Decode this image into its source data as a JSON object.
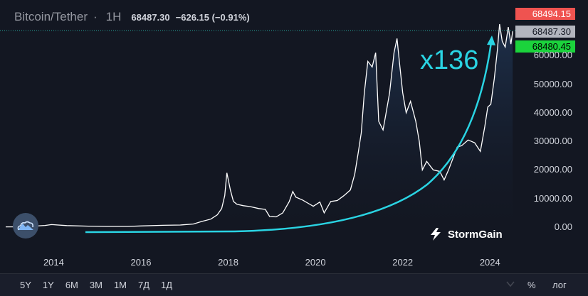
{
  "header": {
    "symbol": "Bitcoin/Tether",
    "separator": "·",
    "interval": "1H",
    "last_price": "68487.30",
    "change": "−626.15 (−0.91%)"
  },
  "price_tags": {
    "high": "68494.15",
    "last": "68487.30",
    "low": "68480.45",
    "high_color": "#ef5350",
    "last_color": "#b2b5be",
    "low_color": "#1bd33c"
  },
  "annotation": {
    "text": "x136",
    "color": "#2ad4e3"
  },
  "brand": {
    "name": "StormGain",
    "icon": "stormgain-logo-icon"
  },
  "logo_badge": {
    "icon": "cloud-mountain-icon"
  },
  "toolbar": {
    "ranges": [
      "5Y",
      "1Y",
      "6M",
      "3M",
      "1M",
      "7Д",
      "1Д"
    ],
    "percent_label": "%",
    "log_label": "лог",
    "settings_icon": "settings-icon"
  },
  "colors": {
    "background": "#131722",
    "price_line": "#ffffff",
    "area_fill": "#1c2a40",
    "trend_arrow": "#2ad4e3",
    "last_price_line": "#26a69a"
  },
  "chart_data": {
    "type": "area",
    "title": "Bitcoin/Tether",
    "xlabel": "",
    "ylabel": "",
    "x_ticks": [
      "2014",
      "2016",
      "2018",
      "2020",
      "2022",
      "2024"
    ],
    "y_ticks": [
      "0.00",
      "10000.00",
      "20000.00",
      "30000.00",
      "40000.00",
      "50000.00",
      "60000.00"
    ],
    "ylim": [
      0,
      72000
    ],
    "xlim": [
      2012.9,
      2024.55
    ],
    "grid": false,
    "series": [
      {
        "name": "Bitcoin/Tether",
        "x": [
          2012.9,
          2013.3,
          2013.8,
          2013.95,
          2014.3,
          2014.8,
          2015.2,
          2015.7,
          2016.0,
          2016.5,
          2016.9,
          2017.2,
          2017.4,
          2017.6,
          2017.75,
          2017.85,
          2017.92,
          2017.97,
          2018.05,
          2018.12,
          2018.2,
          2018.35,
          2018.5,
          2018.7,
          2018.85,
          2018.95,
          2019.1,
          2019.25,
          2019.4,
          2019.48,
          2019.55,
          2019.7,
          2019.85,
          2019.95,
          2020.1,
          2020.2,
          2020.35,
          2020.5,
          2020.65,
          2020.8,
          2020.9,
          2020.98,
          2021.05,
          2021.12,
          2021.2,
          2021.3,
          2021.38,
          2021.45,
          2021.55,
          2021.62,
          2021.7,
          2021.8,
          2021.87,
          2021.93,
          2022.0,
          2022.08,
          2022.18,
          2022.3,
          2022.38,
          2022.45,
          2022.55,
          2022.7,
          2022.85,
          2022.95,
          2023.05,
          2023.15,
          2023.25,
          2023.35,
          2023.5,
          2023.65,
          2023.78,
          2023.88,
          2023.95,
          2024.02,
          2024.1,
          2024.17,
          2024.22,
          2024.28,
          2024.35,
          2024.42,
          2024.48,
          2024.52
        ],
        "values": [
          100,
          120,
          600,
          900,
          550,
          350,
          250,
          250,
          420,
          650,
          750,
          1100,
          2000,
          2800,
          4300,
          6500,
          11000,
          19000,
          13000,
          9000,
          8000,
          7500,
          7200,
          6500,
          6200,
          3700,
          3600,
          5000,
          9000,
          12500,
          10500,
          9500,
          8200,
          7300,
          8800,
          5000,
          9000,
          9300,
          11000,
          13000,
          18500,
          26000,
          33000,
          47000,
          58000,
          56000,
          61000,
          37000,
          34000,
          40000,
          47000,
          61000,
          66000,
          57000,
          47000,
          40000,
          44000,
          37000,
          30000,
          20000,
          23000,
          20000,
          19500,
          16500,
          20000,
          24000,
          28000,
          28500,
          30500,
          29500,
          26500,
          35000,
          42000,
          43000,
          52000,
          62000,
          71000,
          65000,
          63000,
          70000,
          64000,
          68487
        ]
      }
    ]
  }
}
